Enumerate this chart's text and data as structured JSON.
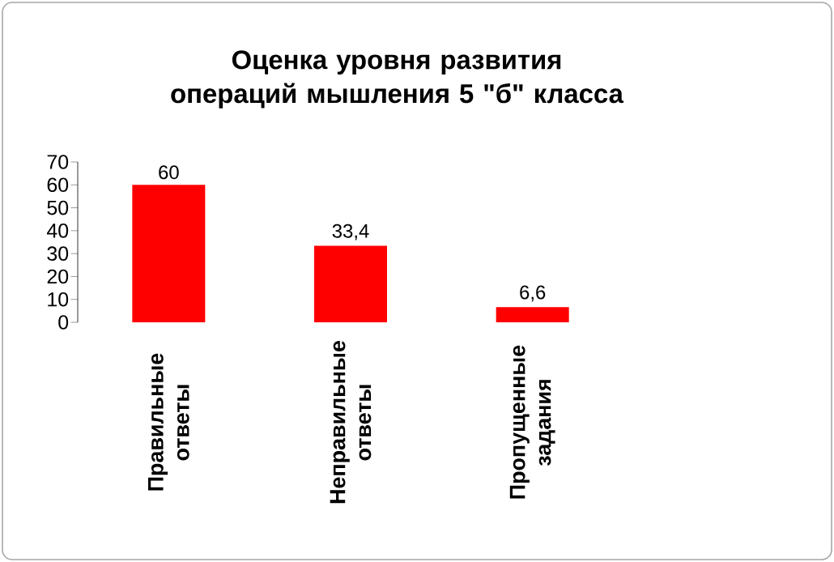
{
  "chart_data": {
    "type": "bar",
    "title": "Оценка уровня развития операций мышления 5 \"б\" класса",
    "categories": [
      "Правильные ответы",
      "Неправильные ответы",
      "Пропущенные задания"
    ],
    "values": [
      60,
      33.4,
      6.6
    ],
    "value_labels": [
      "60",
      "33,4",
      "6,6"
    ],
    "color": "#ff0000",
    "ylim": [
      0,
      70
    ],
    "yticks": [
      0,
      10,
      20,
      30,
      40,
      50,
      60,
      70
    ],
    "grid": false
  }
}
